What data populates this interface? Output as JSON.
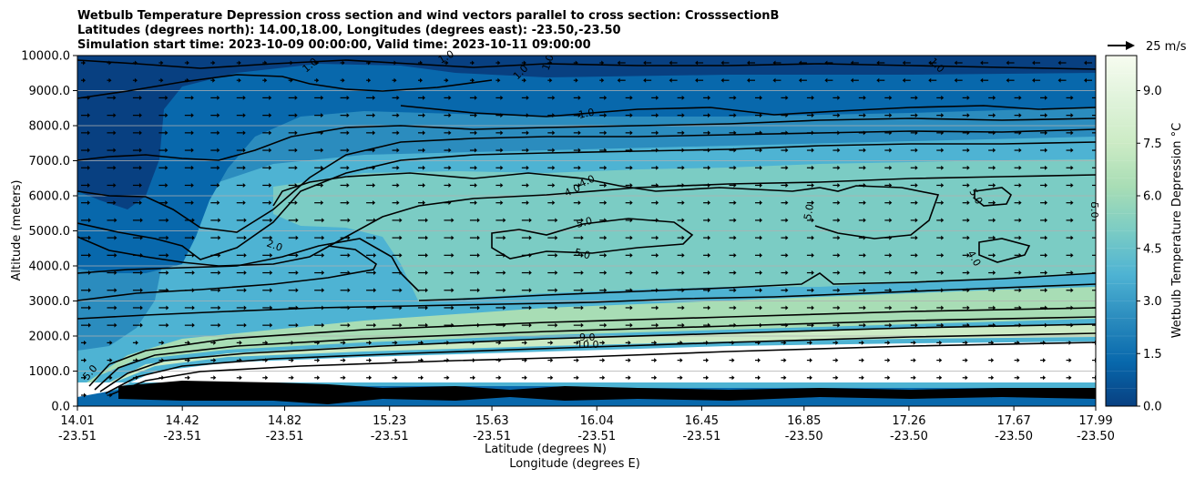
{
  "chart_data": {
    "type": "contour",
    "title_lines": [
      "Wetbulb Temperature Depression cross section and wind vectors parallel to cross section: CrosssectionB",
      "Latitudes (degrees north): 14.00,18.00, Longitudes (degrees east): -23.50,-23.50",
      "Simulation start time: 2023-10-09 00:00:00, Valid time: 2023-10-11 09:00:00"
    ],
    "ylabel": "Altitude (meters)",
    "xlabel_lines": [
      "Latitude (degrees N)",
      "Longitude (degrees E)"
    ],
    "ylim": [
      0,
      10000
    ],
    "yticks": [
      "0.0",
      "1000.0",
      "2000.0",
      "3000.0",
      "4000.0",
      "5000.0",
      "6000.0",
      "7000.0",
      "8000.0",
      "9000.0",
      "10000.0"
    ],
    "xticks": [
      {
        "lat": "14.01",
        "lon": "-23.51"
      },
      {
        "lat": "14.42",
        "lon": "-23.51"
      },
      {
        "lat": "14.82",
        "lon": "-23.51"
      },
      {
        "lat": "15.23",
        "lon": "-23.51"
      },
      {
        "lat": "15.63",
        "lon": "-23.51"
      },
      {
        "lat": "16.04",
        "lon": "-23.51"
      },
      {
        "lat": "16.45",
        "lon": "-23.51"
      },
      {
        "lat": "16.85",
        "lon": "-23.50"
      },
      {
        "lat": "17.26",
        "lon": "-23.50"
      },
      {
        "lat": "17.67",
        "lon": "-23.50"
      },
      {
        "lat": "17.99",
        "lon": "-23.50"
      }
    ],
    "grid": "horizontal",
    "colorbar": {
      "label": "Wetbulb Temperature Depression °C",
      "ticks": [
        "0.0",
        "1.5",
        "3.0",
        "4.5",
        "6.0",
        "7.5",
        "9.0"
      ],
      "range": [
        0,
        10
      ],
      "colormap": [
        "#084081",
        "#0868ac",
        "#2b8cbe",
        "#4eb3d3",
        "#7bccc4",
        "#a8ddb5",
        "#ccebc5",
        "#e0f3db",
        "#f7fcf0"
      ]
    },
    "quiver_key": "25 m/s",
    "contour_labels": [
      "1.0",
      "1.0",
      "1.0",
      "1.0",
      "1.0",
      "1.0",
      "2.0",
      "4.0",
      "4.0",
      "5.0",
      "5.0",
      "5.0",
      "5.0",
      "4.0",
      "5.0",
      "9.0",
      "10.0",
      "5.0"
    ]
  }
}
